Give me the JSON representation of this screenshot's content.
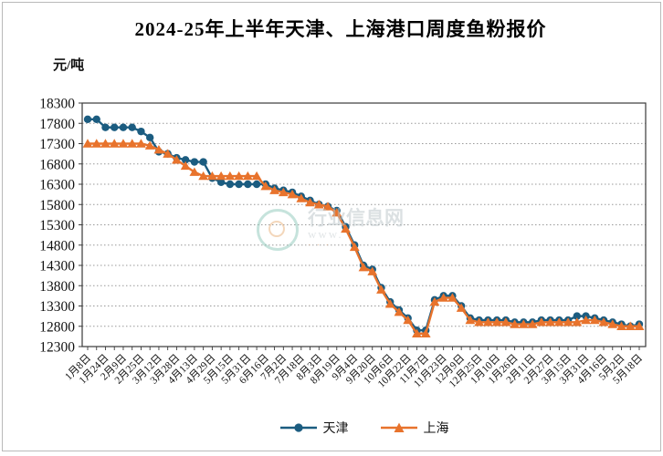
{
  "title": "2024-25年上半年天津、上海港口周度鱼粉报价",
  "y_axis_unit": "元/吨",
  "colors": {
    "tianjin": "#1b5c80",
    "shanghai": "#e8732c",
    "grid": "#999999",
    "axis": "#3a3a3a",
    "text": "#111111"
  },
  "legend": [
    {
      "label": "天津",
      "marker": "circle",
      "color": "#1b5c80"
    },
    {
      "label": "上海",
      "marker": "triangle",
      "color": "#e8732c"
    }
  ],
  "watermark": {
    "text": "行业信息网",
    "url_text": "www.",
    "accent_text": "···",
    "logo_color": "#8ec8ba",
    "text_color": "#b9c3c7"
  },
  "chart_data": {
    "type": "line",
    "title": "2024-25年上半年天津、上海港口周度鱼粉报价",
    "ylabel": "元/吨",
    "ylim": [
      12300,
      18300
    ],
    "yticks": [
      18300,
      17800,
      17300,
      16800,
      16300,
      15800,
      15300,
      14800,
      14300,
      13800,
      13300,
      12800,
      12300
    ],
    "grid": "dotted-horizontal",
    "legend_position": "bottom-center",
    "x_label_every_n_points": 2,
    "x_labels": [
      "1月8日",
      "1月24日",
      "2月9日",
      "2月25日",
      "3月12日",
      "3月28日",
      "4月13日",
      "4月29日",
      "5月15日",
      "5月31日",
      "6月16日",
      "7月2日",
      "7月18日",
      "8月3日",
      "8月19日",
      "9月4日",
      "9月20日",
      "10月6日",
      "10月22日",
      "11月7日",
      "11月23日",
      "12月9日",
      "12月25日",
      "1月10日",
      "1月26日",
      "2月11日",
      "2月27日",
      "3月15日",
      "3月31日",
      "4月16日",
      "5月2日",
      "5月18日"
    ],
    "series": [
      {
        "name": "天津",
        "marker": "circle",
        "color": "#1b5c80",
        "values": [
          17900,
          17900,
          17700,
          17700,
          17700,
          17700,
          17600,
          17450,
          17100,
          17050,
          16950,
          16900,
          16850,
          16850,
          16450,
          16350,
          16300,
          16300,
          16300,
          16300,
          16300,
          16200,
          16150,
          16100,
          16000,
          15900,
          15800,
          15750,
          15650,
          15250,
          14800,
          14300,
          14200,
          13750,
          13400,
          13200,
          13000,
          12700,
          12700,
          13450,
          13550,
          13550,
          13300,
          13000,
          12950,
          12950,
          12950,
          12950,
          12900,
          12900,
          12900,
          12950,
          12950,
          12950,
          12950,
          13050,
          13050,
          13000,
          12950,
          12900,
          12850,
          12800,
          12850
        ]
      },
      {
        "name": "上海",
        "marker": "triangle",
        "color": "#e8732c",
        "values": [
          17300,
          17300,
          17300,
          17300,
          17300,
          17300,
          17300,
          17250,
          17150,
          17050,
          16900,
          16750,
          16600,
          16500,
          16500,
          16500,
          16500,
          16500,
          16500,
          16500,
          16250,
          16150,
          16100,
          16050,
          15950,
          15850,
          15800,
          15750,
          15600,
          15200,
          14750,
          14250,
          14150,
          13700,
          13350,
          13150,
          12950,
          12620,
          12620,
          13400,
          13500,
          13500,
          13250,
          12950,
          12900,
          12900,
          12900,
          12900,
          12850,
          12850,
          12850,
          12900,
          12900,
          12900,
          12900,
          12900,
          12950,
          12950,
          12900,
          12850,
          12800,
          12800,
          12800
        ]
      }
    ]
  }
}
